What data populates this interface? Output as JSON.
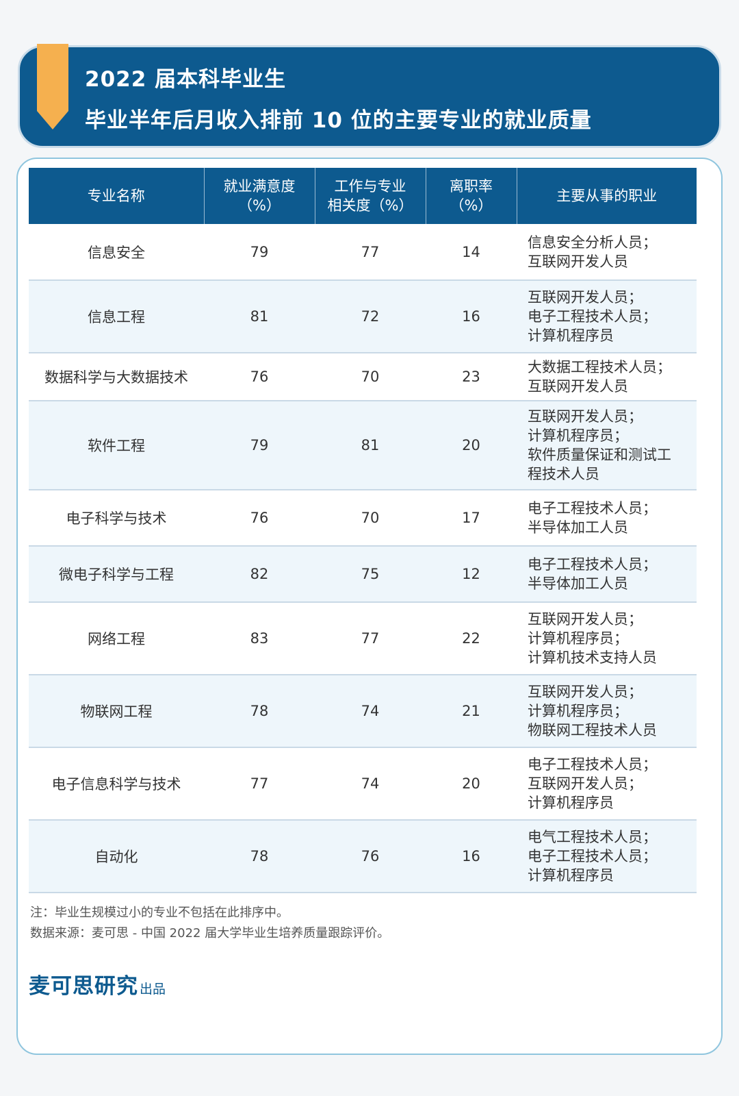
{
  "header": {
    "title_line1": "2022 届本科毕业生",
    "title_line2": "毕业半年后月收入排前 10 位的主要专业的就业质量"
  },
  "table": {
    "headers": [
      [
        "专业名称"
      ],
      [
        "就业满意度",
        "（%）"
      ],
      [
        "工作与专业",
        "相关度（%）"
      ],
      [
        "离职率",
        "（%）"
      ],
      [
        "主要从事的职业"
      ]
    ],
    "rows": [
      {
        "major": "信息安全",
        "satisfaction": "79",
        "relevance": "77",
        "turnover": "14",
        "occupations": [
          "信息安全分析人员；",
          "互联网开发人员"
        ]
      },
      {
        "major": "信息工程",
        "satisfaction": "81",
        "relevance": "72",
        "turnover": "16",
        "occupations": [
          "互联网开发人员；",
          "电子工程技术人员；",
          "计算机程序员"
        ]
      },
      {
        "major": "数据科学与大数据技术",
        "satisfaction": "76",
        "relevance": "70",
        "turnover": "23",
        "occupations": [
          "大数据工程技术人员；",
          "互联网开发人员"
        ]
      },
      {
        "major": "软件工程",
        "satisfaction": "79",
        "relevance": "81",
        "turnover": "20",
        "occupations": [
          "互联网开发人员；",
          "计算机程序员；",
          "软件质量保证和测试工",
          "程技术人员"
        ]
      },
      {
        "major": "电子科学与技术",
        "satisfaction": "76",
        "relevance": "70",
        "turnover": "17",
        "occupations": [
          "电子工程技术人员；",
          "半导体加工人员"
        ]
      },
      {
        "major": "微电子科学与工程",
        "satisfaction": "82",
        "relevance": "75",
        "turnover": "12",
        "occupations": [
          "电子工程技术人员；",
          "半导体加工人员"
        ]
      },
      {
        "major": "网络工程",
        "satisfaction": "83",
        "relevance": "77",
        "turnover": "22",
        "occupations": [
          "互联网开发人员；",
          "计算机程序员；",
          "计算机技术支持人员"
        ]
      },
      {
        "major": "物联网工程",
        "satisfaction": "78",
        "relevance": "74",
        "turnover": "21",
        "occupations": [
          "互联网开发人员；",
          "计算机程序员；",
          "物联网工程技术人员"
        ]
      },
      {
        "major": "电子信息科学与技术",
        "satisfaction": "77",
        "relevance": "74",
        "turnover": "20",
        "occupations": [
          "电子工程技术人员；",
          "互联网开发人员；",
          "计算机程序员"
        ]
      },
      {
        "major": "自动化",
        "satisfaction": "78",
        "relevance": "76",
        "turnover": "16",
        "occupations": [
          "电气工程技术人员；",
          "电子工程技术人员；",
          "计算机程序员"
        ]
      }
    ]
  },
  "notes": {
    "note": "注：毕业生规模过小的专业不包括在此排序中。",
    "source": "数据来源：麦可思 - 中国 2022 届大学毕业生培养质量跟踪评价。"
  },
  "brand": {
    "name": "麦可思研究",
    "suffix": "出品"
  },
  "colors": {
    "primary": "#0d5a8f",
    "accent": "#f5b04f",
    "row_alt": "#eef6fb"
  },
  "icons": {
    "ribbon": "bookmark-ribbon"
  }
}
